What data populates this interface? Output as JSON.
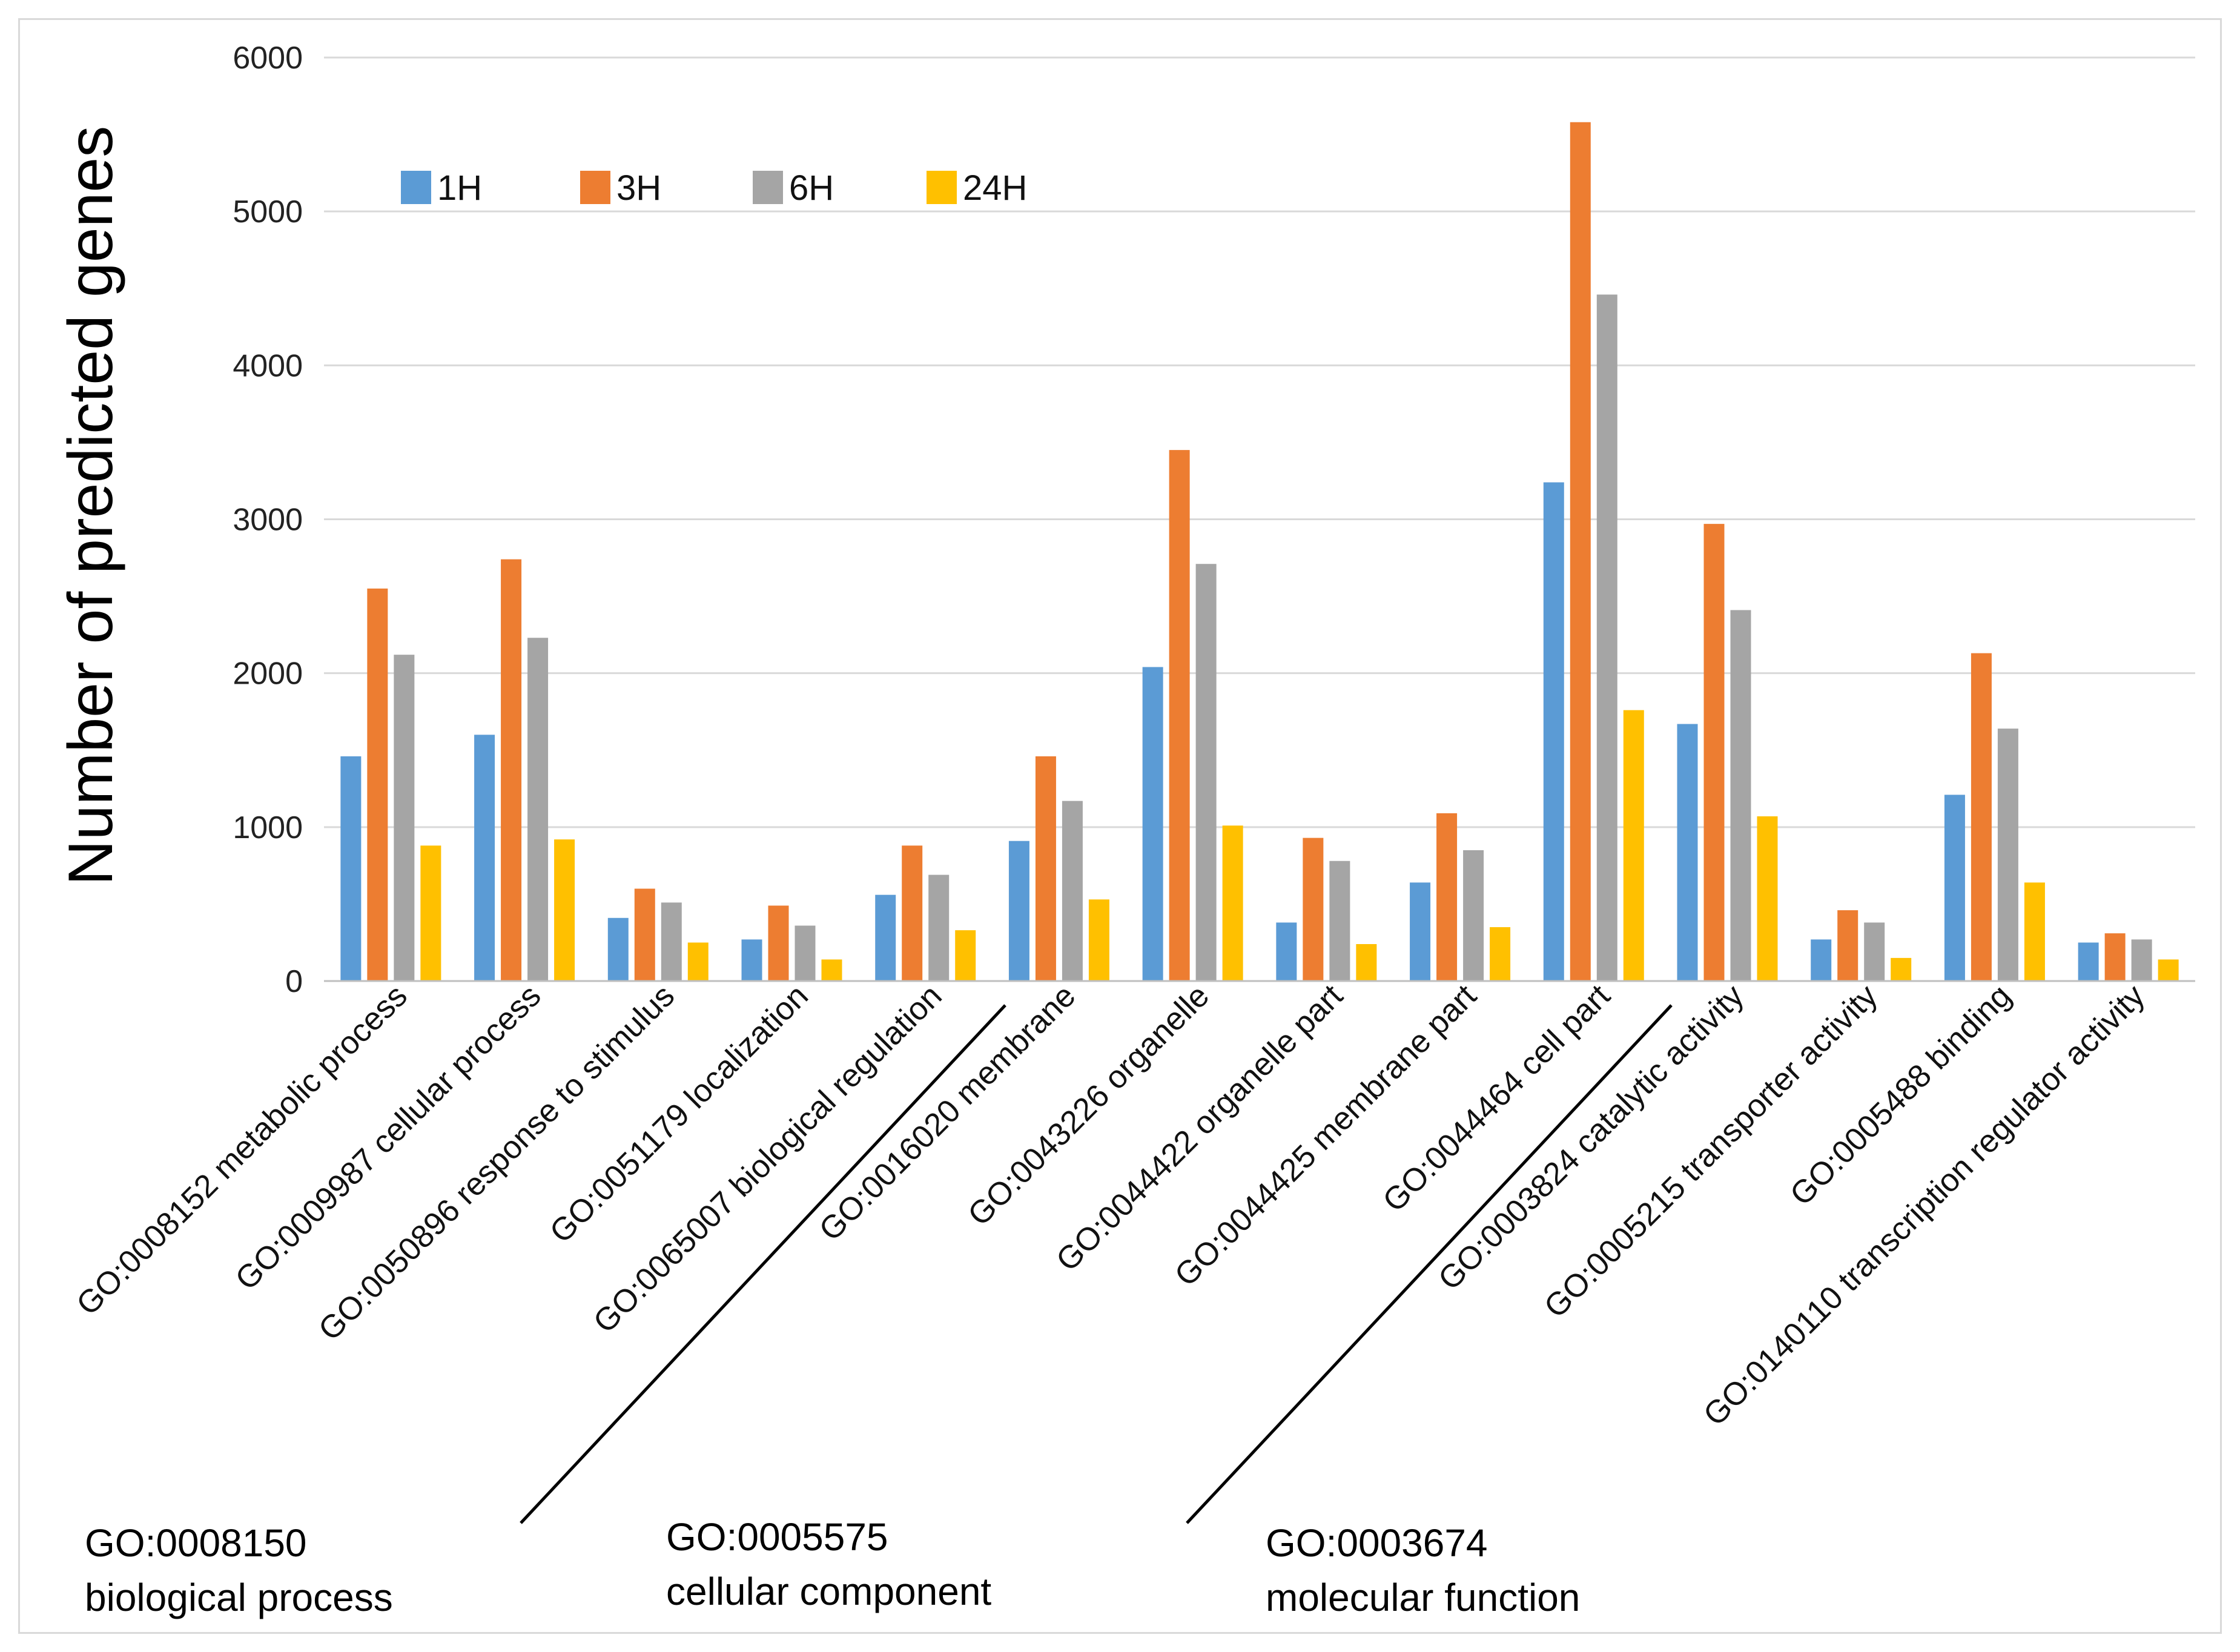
{
  "chart_data": {
    "type": "bar",
    "title": "",
    "xlabel": "",
    "ylabel": "Number of predicted genes",
    "ylim": [
      0,
      6000
    ],
    "yticks": [
      0,
      1000,
      2000,
      3000,
      4000,
      5000,
      6000
    ],
    "grid": true,
    "legend_position": "top-left",
    "categories": [
      "GO:0008152 metabolic process",
      "GO:0009987 cellular process",
      "GO:0050896 response to stimulus",
      "GO:0051179 localization",
      "GO:0065007 biological regulation",
      "GO:0016020 membrane",
      "GO:0043226 organelle",
      "GO:0044422 organelle part",
      "GO:0044425 membrane part",
      "GO:0044464 cell part",
      "GO:0003824 catalytic activity",
      "GO:0005215 transporter activity",
      "GO:0005488 binding",
      "GO:0140110 transcription regulator activity"
    ],
    "series": [
      {
        "name": "1H",
        "color": "#5b9bd5",
        "values": [
          1460,
          1600,
          410,
          270,
          560,
          910,
          2040,
          380,
          640,
          3240,
          1670,
          270,
          1210,
          250
        ]
      },
      {
        "name": "3H",
        "color": "#ed7d31",
        "values": [
          2550,
          2740,
          600,
          490,
          880,
          1460,
          3450,
          930,
          1090,
          5580,
          2970,
          460,
          2130,
          310
        ]
      },
      {
        "name": "6H",
        "color": "#a5a5a5",
        "values": [
          2120,
          2230,
          510,
          360,
          690,
          1170,
          2710,
          780,
          850,
          4460,
          2410,
          380,
          1640,
          270
        ]
      },
      {
        "name": "24H",
        "color": "#ffc000",
        "values": [
          880,
          920,
          250,
          140,
          330,
          530,
          1010,
          240,
          350,
          1760,
          1070,
          150,
          640,
          140
        ]
      }
    ],
    "groups": [
      {
        "id": "GO:0008150",
        "name": "biological process"
      },
      {
        "id": "GO:0005575",
        "name": "cellular component"
      },
      {
        "id": "GO:0003674",
        "name": "molecular function"
      }
    ]
  }
}
